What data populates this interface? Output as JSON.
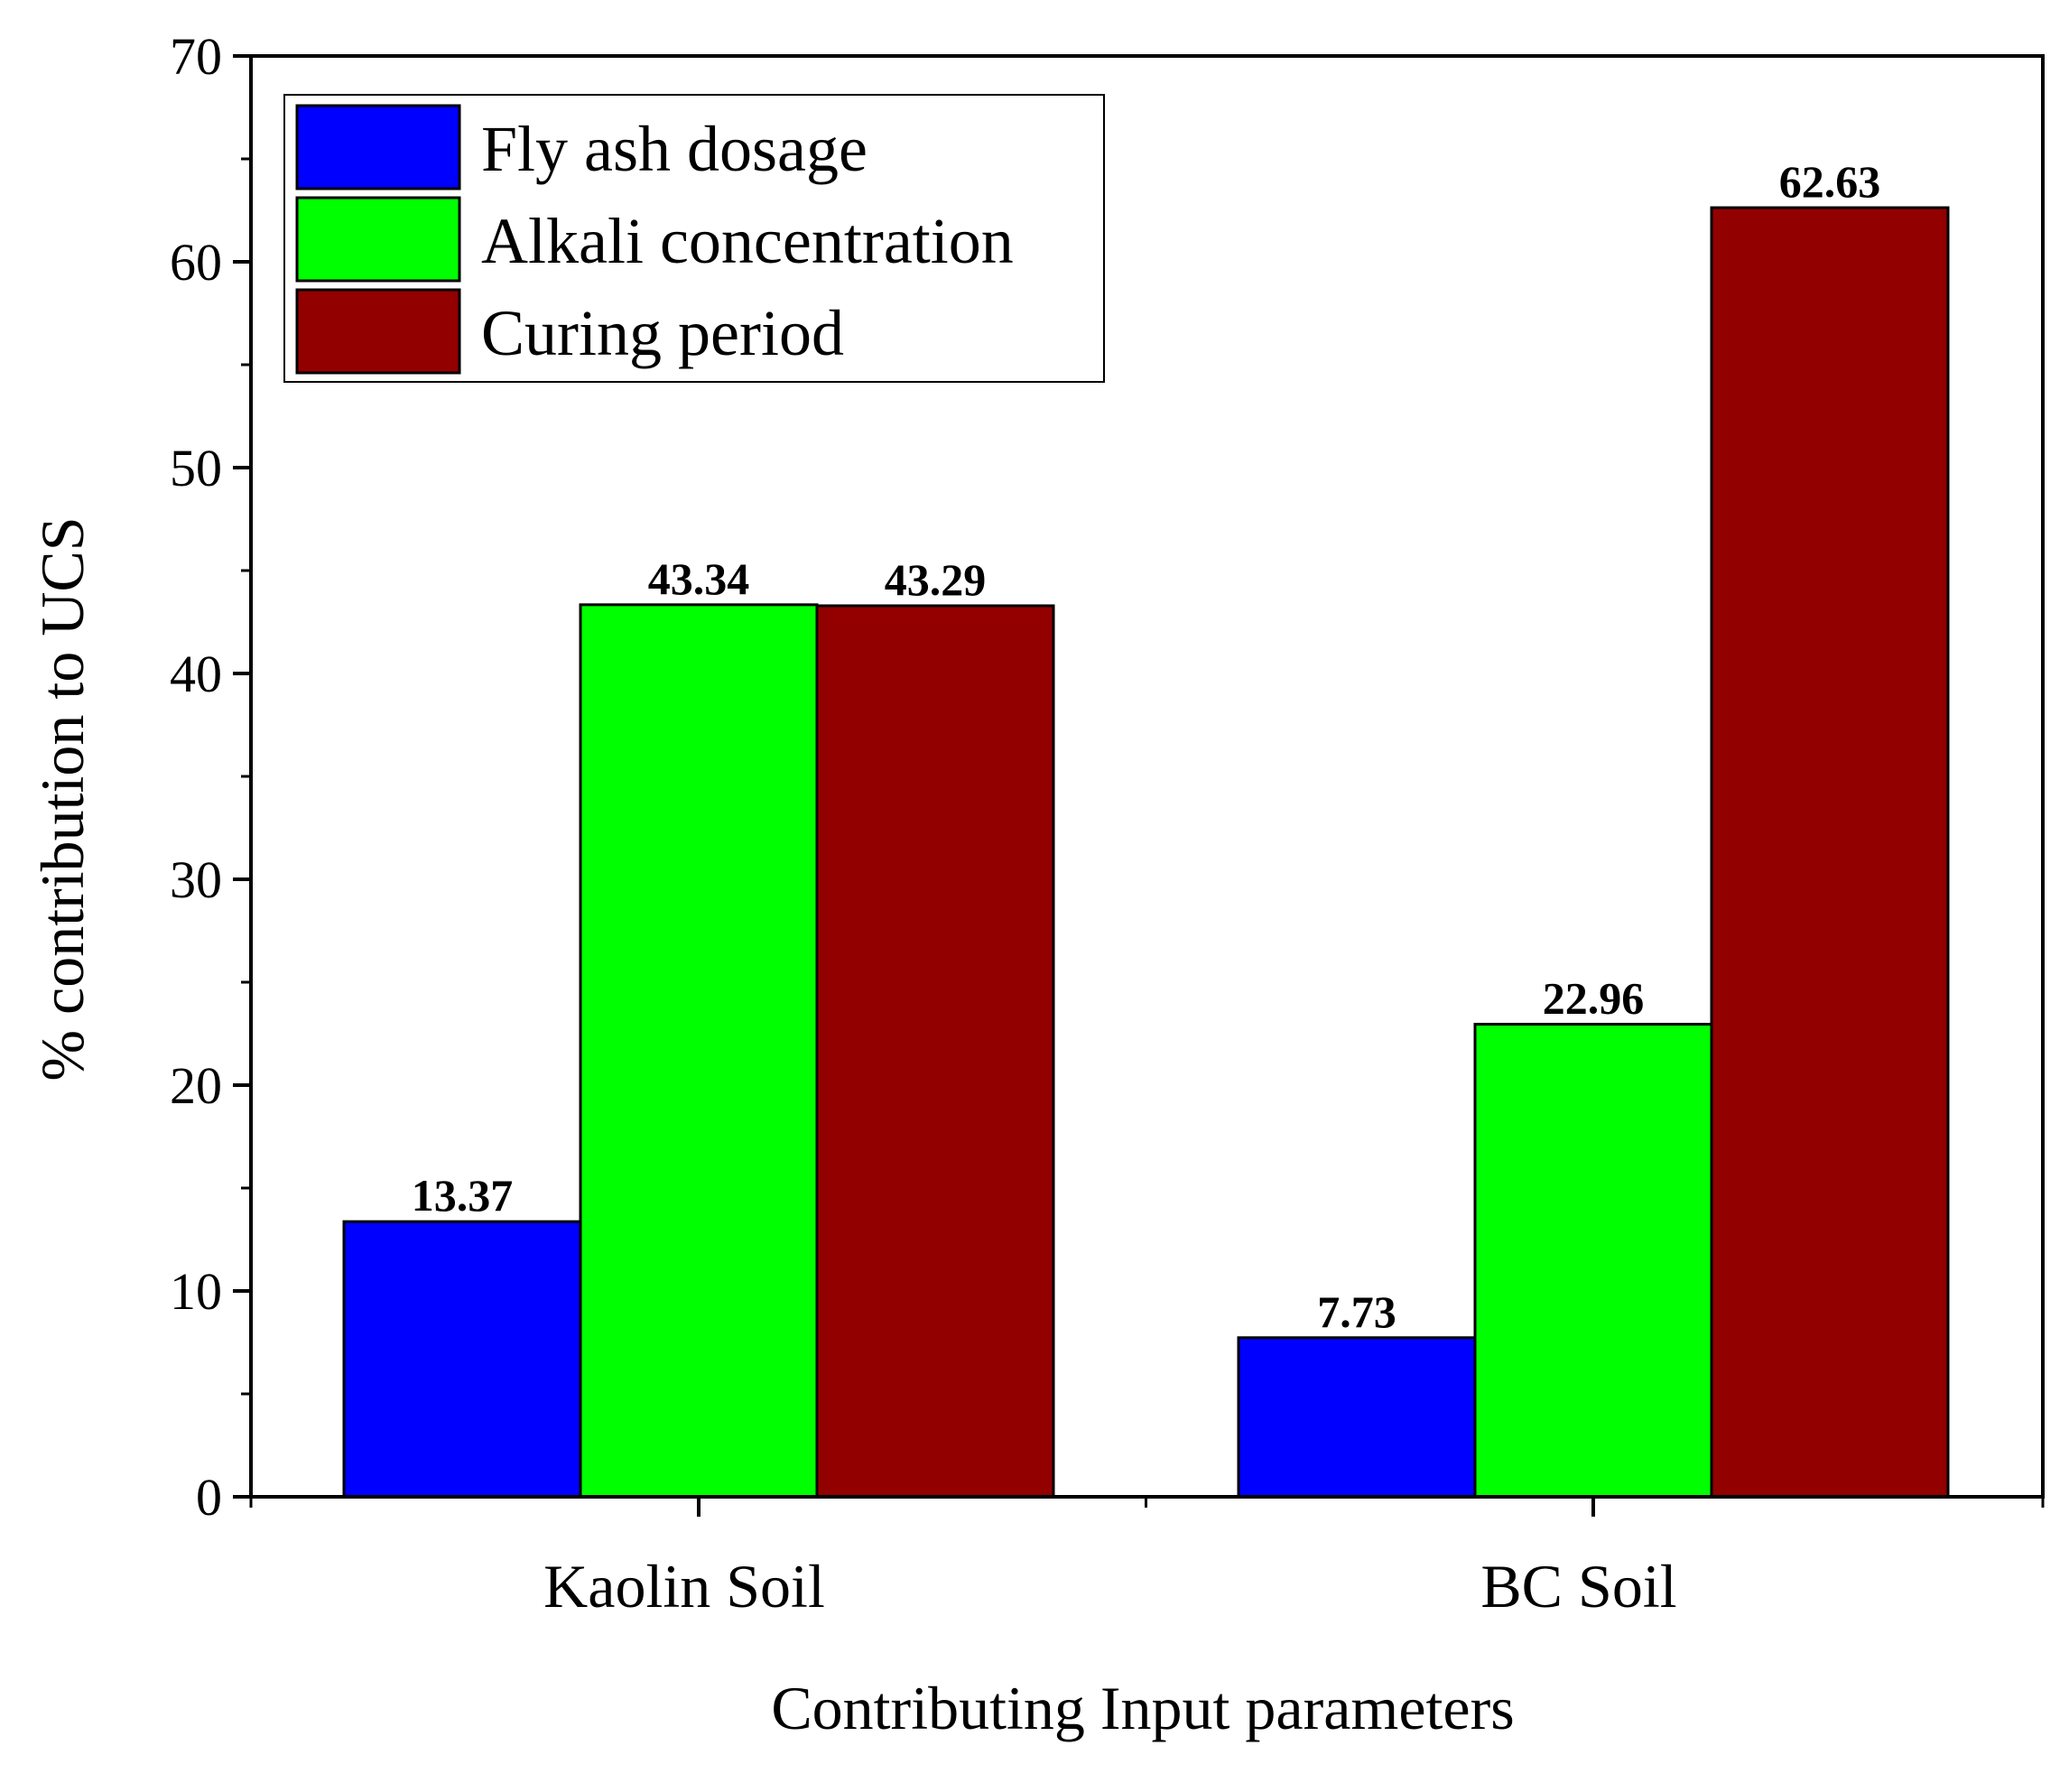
{
  "chart_data": {
    "type": "bar",
    "title": "",
    "xlabel": "Contributing Input parameters",
    "ylabel": "% contribution to UCS",
    "ylim": [
      0,
      70
    ],
    "yticks": [
      0,
      10,
      20,
      30,
      40,
      50,
      60,
      70
    ],
    "categories": [
      "Kaolin Soil",
      "BC Soil"
    ],
    "series": [
      {
        "name": "Fly ash dosage",
        "color": "#0000ff",
        "values": [
          13.37,
          7.73
        ],
        "labels": [
          "13.37",
          "7.73"
        ]
      },
      {
        "name": "Alkali concentration",
        "color": "#00ff00",
        "values": [
          43.34,
          22.96
        ],
        "labels": [
          "43.34",
          "22.96"
        ]
      },
      {
        "name": "Curing period",
        "color": "#930000",
        "values": [
          43.29,
          62.63
        ],
        "labels": [
          "43.29",
          "62.63"
        ]
      }
    ],
    "legend": {
      "position": "top-left",
      "frame": true
    },
    "grid": false
  }
}
